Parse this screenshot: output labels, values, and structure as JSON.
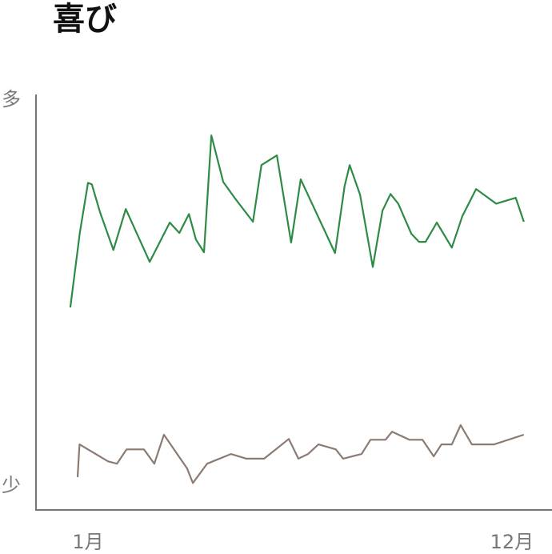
{
  "chart_data": {
    "type": "line",
    "title": "喜び",
    "xlim": [
      -0.35,
      13.04
    ],
    "xticks": [
      {
        "value": 1,
        "label": "1月"
      },
      {
        "value": 12,
        "label": "12月"
      }
    ],
    "ylim": [
      -6.2,
      101.5
    ],
    "yticks": [
      {
        "value": 100,
        "label": "多"
      },
      {
        "value": 0,
        "label": "少"
      }
    ],
    "series": [
      {
        "color": "#2e8b46",
        "x": [
          0.54,
          0.79,
          1.0,
          1.1,
          1.31,
          1.66,
          1.98,
          2.6,
          3.12,
          3.37,
          3.62,
          3.8,
          4.01,
          4.2,
          4.51,
          4.82,
          5.28,
          5.5,
          5.9,
          6.27,
          6.52,
          7.41,
          7.66,
          7.79,
          8.06,
          8.39,
          8.64,
          8.85,
          9.05,
          9.39,
          9.59,
          9.76,
          10.05,
          10.44,
          10.71,
          11.07,
          11.59,
          12.1,
          12.31
        ],
        "values": [
          46.3,
          65.8,
          78.6,
          78.2,
          71.0,
          61.2,
          71.8,
          58.1,
          68.3,
          65.6,
          70.5,
          63.9,
          60.6,
          90.9,
          78.8,
          74.5,
          68.5,
          83.2,
          85.7,
          63.1,
          79.5,
          60.4,
          77.8,
          83.2,
          75.5,
          56.8,
          71.4,
          75.7,
          73.2,
          65.4,
          63.3,
          63.3,
          68.3,
          61.8,
          69.9,
          77.0,
          73.2,
          74.7,
          68.5
        ]
      },
      {
        "color": "#8c7b72",
        "x": [
          0.73,
          0.78,
          1.52,
          1.75,
          2.0,
          2.45,
          2.72,
          2.97,
          3.57,
          3.72,
          4.09,
          4.71,
          5.11,
          5.57,
          6.21,
          6.46,
          6.71,
          6.98,
          7.43,
          7.62,
          8.1,
          8.33,
          8.72,
          8.89,
          9.34,
          9.68,
          9.97,
          10.17,
          10.44,
          10.67,
          10.96,
          11.54,
          12.31
        ],
        "values": [
          2.3,
          10.8,
          6.4,
          5.8,
          9.5,
          9.5,
          5.8,
          13.3,
          4.6,
          0.8,
          5.8,
          8.3,
          7.1,
          7.1,
          12.2,
          7.1,
          8.3,
          10.8,
          9.5,
          7.1,
          8.3,
          12.0,
          12.0,
          14.1,
          12.0,
          12.0,
          7.7,
          10.8,
          10.8,
          15.8,
          10.8,
          10.8,
          13.3
        ]
      }
    ]
  }
}
